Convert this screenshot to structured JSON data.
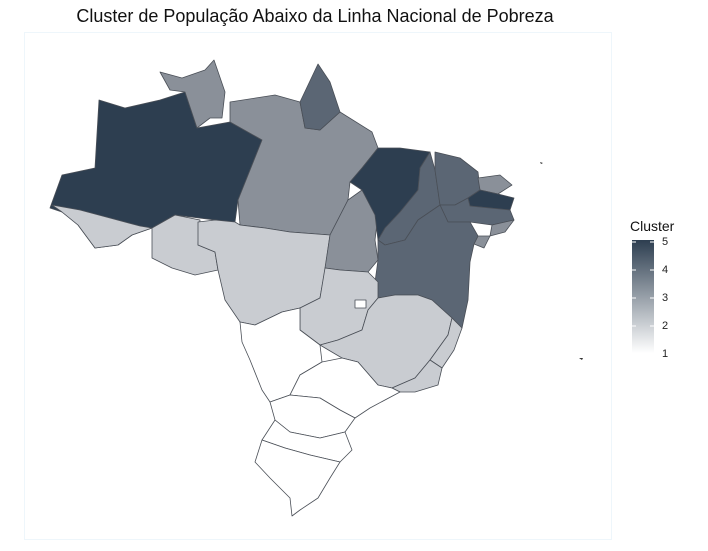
{
  "title": "Cluster de População Abaixo da Linha Nacional de Pobreza",
  "legend": {
    "title": "Cluster",
    "ticks": [
      "5",
      "4",
      "3",
      "2",
      "1"
    ],
    "gradient_top_color": "#2d3e50",
    "gradient_bottom_color": "#ffffff"
  },
  "cluster_colors": {
    "1": "#ffffff",
    "2": "#c9ccd1",
    "3": "#8a9099",
    "4": "#5b6674",
    "5": "#2d3e50"
  },
  "regions": [
    {
      "name": "Amazonas",
      "cluster": 5
    },
    {
      "name": "Pará",
      "cluster": 3
    },
    {
      "name": "Roraima",
      "cluster": 3
    },
    {
      "name": "Amapá",
      "cluster": 4
    },
    {
      "name": "Acre",
      "cluster": 2
    },
    {
      "name": "Rondônia",
      "cluster": 2
    },
    {
      "name": "Mato Grosso",
      "cluster": 2
    },
    {
      "name": "Tocantins",
      "cluster": 3
    },
    {
      "name": "Maranhão",
      "cluster": 5
    },
    {
      "name": "Piauí",
      "cluster": 4
    },
    {
      "name": "Ceará",
      "cluster": 4
    },
    {
      "name": "Rio Grande do Norte",
      "cluster": 3
    },
    {
      "name": "Paraíba",
      "cluster": 5
    },
    {
      "name": "Pernambuco",
      "cluster": 4
    },
    {
      "name": "Alagoas",
      "cluster": 3
    },
    {
      "name": "Sergipe",
      "cluster": 3
    },
    {
      "name": "Bahia",
      "cluster": 4
    },
    {
      "name": "Goiás",
      "cluster": 2
    },
    {
      "name": "Distrito Federal",
      "cluster": 1
    },
    {
      "name": "Mato Grosso do Sul",
      "cluster": 1
    },
    {
      "name": "Minas Gerais",
      "cluster": 2
    },
    {
      "name": "Espírito Santo",
      "cluster": 2
    },
    {
      "name": "Rio de Janeiro",
      "cluster": 2
    },
    {
      "name": "São Paulo",
      "cluster": 1
    },
    {
      "name": "Paraná",
      "cluster": 1
    },
    {
      "name": "Santa Catarina",
      "cluster": 1
    },
    {
      "name": "Rio Grande do Sul",
      "cluster": 1
    }
  ]
}
